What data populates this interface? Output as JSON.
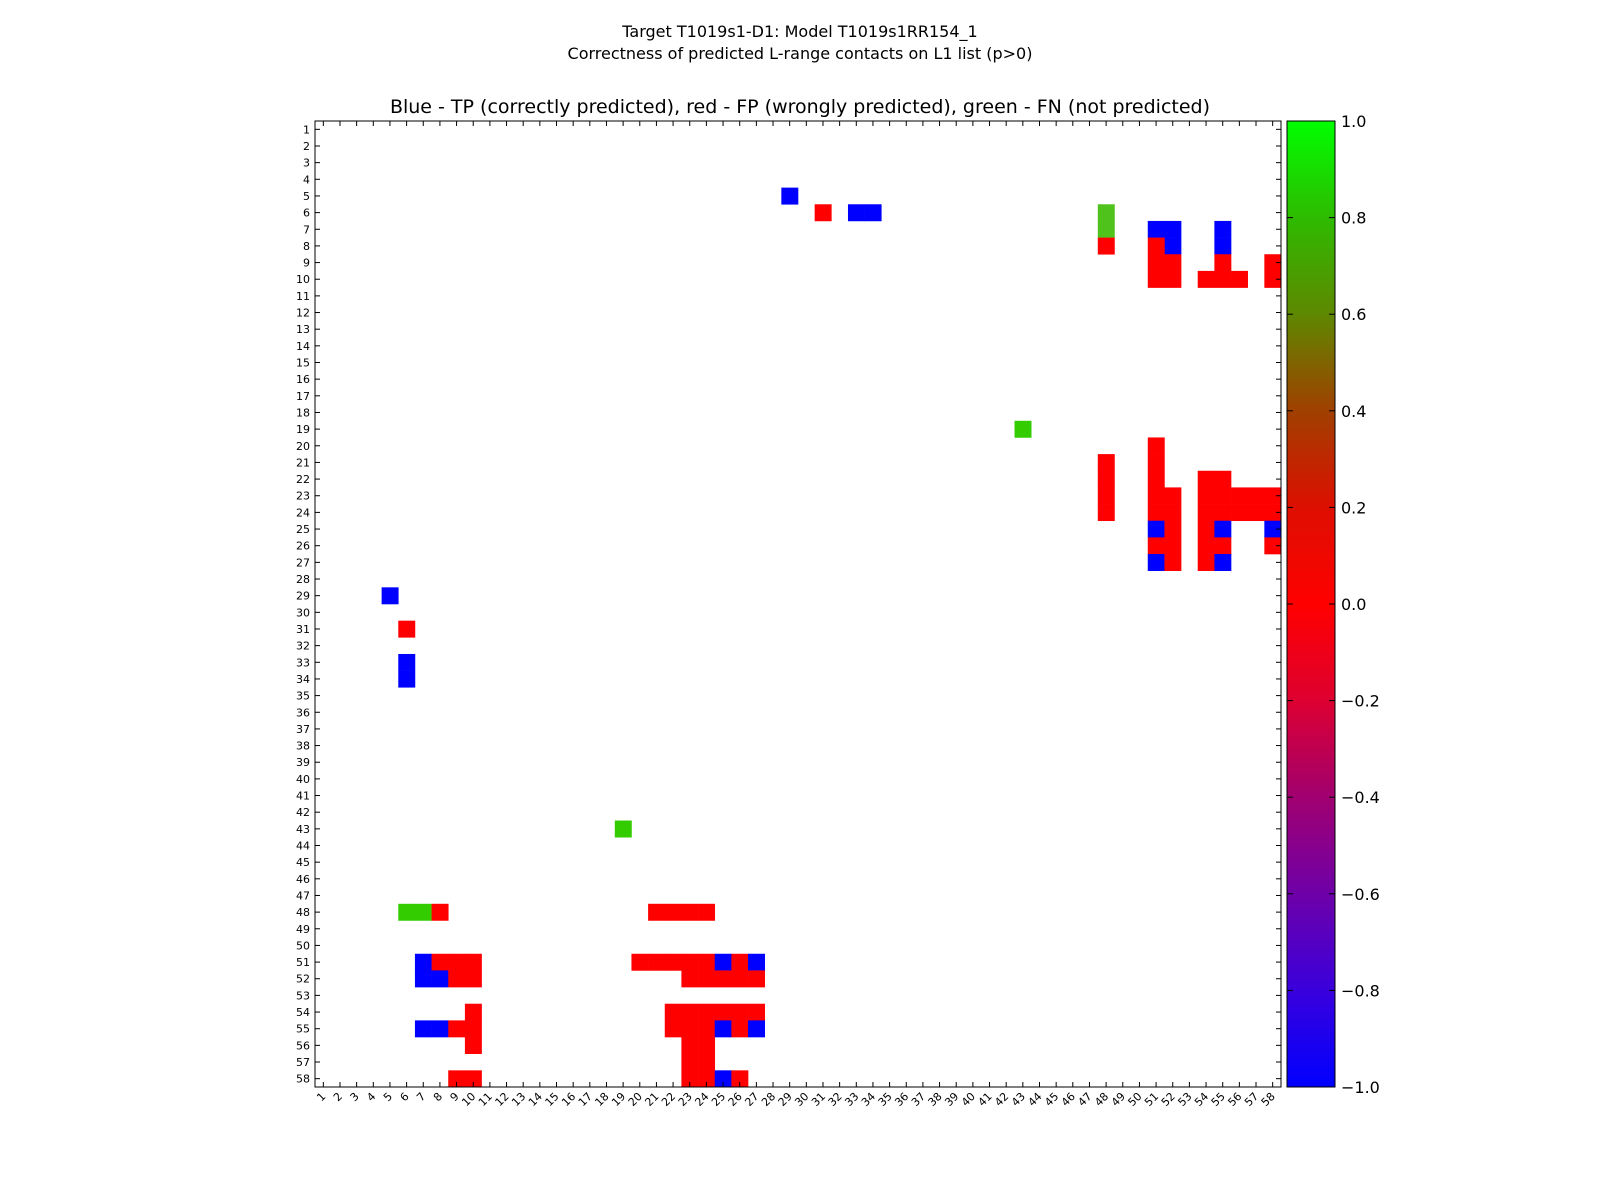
{
  "chart_data": {
    "type": "heatmap",
    "title_line1": "Target T1019s1-D1: Model T1019s1RR154_1",
    "title_line2": "Correctness of predicted L-range contacts on L1 list (p>0)",
    "subtitle": "Blue - TP (correctly predicted), red - FP (wrongly predicted), green - FN (not predicted)",
    "n": 58,
    "colors": {
      "TP": "#0000ff",
      "FP": "#ff0000",
      "FN": "#33cc00",
      "FN_light": "#4fc21c"
    },
    "colorbar": {
      "min": -1.0,
      "max": 1.0,
      "ticks": [
        "1.0",
        "0.8",
        "0.6",
        "0.4",
        "0.2",
        "0.0",
        "−0.2",
        "−0.4",
        "−0.6",
        "−0.8",
        "−1.0"
      ],
      "ramp": [
        "#00ff00",
        "#2ebb00",
        "#5e8800",
        "#a04000",
        "#dd0f00",
        "#ff0000",
        "#dd0030",
        "#a10070",
        "#6e00a8",
        "#3a00dc",
        "#0000ff"
      ]
    },
    "cells": [
      {
        "row": 5,
        "col": 29,
        "type": "TP"
      },
      {
        "row": 6,
        "col": 31,
        "type": "FP"
      },
      {
        "row": 6,
        "col": 33,
        "type": "TP"
      },
      {
        "row": 6,
        "col": 34,
        "type": "TP"
      },
      {
        "row": 6,
        "col": 48,
        "type": "FN_light"
      },
      {
        "row": 7,
        "col": 48,
        "type": "FN_light"
      },
      {
        "row": 8,
        "col": 48,
        "type": "FP"
      },
      {
        "row": 7,
        "col": 51,
        "type": "TP"
      },
      {
        "row": 7,
        "col": 52,
        "type": "TP"
      },
      {
        "row": 8,
        "col": 52,
        "type": "TP"
      },
      {
        "row": 7,
        "col": 55,
        "type": "TP"
      },
      {
        "row": 8,
        "col": 55,
        "type": "TP"
      },
      {
        "row": 8,
        "col": 51,
        "type": "FP"
      },
      {
        "row": 9,
        "col": 51,
        "type": "FP"
      },
      {
        "row": 9,
        "col": 52,
        "type": "FP"
      },
      {
        "row": 10,
        "col": 51,
        "type": "FP"
      },
      {
        "row": 10,
        "col": 52,
        "type": "FP"
      },
      {
        "row": 9,
        "col": 55,
        "type": "FP"
      },
      {
        "row": 10,
        "col": 54,
        "type": "FP"
      },
      {
        "row": 10,
        "col": 55,
        "type": "FP"
      },
      {
        "row": 10,
        "col": 56,
        "type": "FP"
      },
      {
        "row": 9,
        "col": 58,
        "type": "FP"
      },
      {
        "row": 10,
        "col": 58,
        "type": "FP"
      },
      {
        "row": 19,
        "col": 43,
        "type": "FN"
      },
      {
        "row": 21,
        "col": 48,
        "type": "FP"
      },
      {
        "row": 22,
        "col": 48,
        "type": "FP"
      },
      {
        "row": 23,
        "col": 48,
        "type": "FP"
      },
      {
        "row": 24,
        "col": 48,
        "type": "FP"
      },
      {
        "row": 20,
        "col": 51,
        "type": "FP"
      },
      {
        "row": 21,
        "col": 51,
        "type": "FP"
      },
      {
        "row": 22,
        "col": 51,
        "type": "FP"
      },
      {
        "row": 23,
        "col": 51,
        "type": "FP"
      },
      {
        "row": 24,
        "col": 51,
        "type": "FP"
      },
      {
        "row": 25,
        "col": 51,
        "type": "TP"
      },
      {
        "row": 26,
        "col": 51,
        "type": "FP"
      },
      {
        "row": 27,
        "col": 51,
        "type": "TP"
      },
      {
        "row": 23,
        "col": 52,
        "type": "FP"
      },
      {
        "row": 24,
        "col": 52,
        "type": "FP"
      },
      {
        "row": 25,
        "col": 52,
        "type": "FP"
      },
      {
        "row": 26,
        "col": 52,
        "type": "FP"
      },
      {
        "row": 27,
        "col": 52,
        "type": "FP"
      },
      {
        "row": 22,
        "col": 54,
        "type": "FP"
      },
      {
        "row": 23,
        "col": 54,
        "type": "FP"
      },
      {
        "row": 24,
        "col": 54,
        "type": "FP"
      },
      {
        "row": 25,
        "col": 54,
        "type": "FP"
      },
      {
        "row": 26,
        "col": 54,
        "type": "FP"
      },
      {
        "row": 27,
        "col": 54,
        "type": "FP"
      },
      {
        "row": 22,
        "col": 55,
        "type": "FP"
      },
      {
        "row": 23,
        "col": 55,
        "type": "FP"
      },
      {
        "row": 24,
        "col": 55,
        "type": "FP"
      },
      {
        "row": 25,
        "col": 55,
        "type": "TP"
      },
      {
        "row": 26,
        "col": 55,
        "type": "FP"
      },
      {
        "row": 27,
        "col": 55,
        "type": "TP"
      },
      {
        "row": 23,
        "col": 56,
        "type": "FP"
      },
      {
        "row": 24,
        "col": 56,
        "type": "FP"
      },
      {
        "row": 23,
        "col": 57,
        "type": "FP"
      },
      {
        "row": 24,
        "col": 57,
        "type": "FP"
      },
      {
        "row": 23,
        "col": 58,
        "type": "FP"
      },
      {
        "row": 24,
        "col": 58,
        "type": "FP"
      },
      {
        "row": 25,
        "col": 58,
        "type": "TP"
      },
      {
        "row": 26,
        "col": 58,
        "type": "FP"
      },
      {
        "row": 29,
        "col": 5,
        "type": "TP"
      },
      {
        "row": 31,
        "col": 6,
        "type": "FP"
      },
      {
        "row": 33,
        "col": 6,
        "type": "TP"
      },
      {
        "row": 34,
        "col": 6,
        "type": "TP"
      },
      {
        "row": 43,
        "col": 19,
        "type": "FN"
      },
      {
        "row": 48,
        "col": 6,
        "type": "FN"
      },
      {
        "row": 48,
        "col": 7,
        "type": "FN"
      },
      {
        "row": 48,
        "col": 8,
        "type": "FP"
      },
      {
        "row": 48,
        "col": 21,
        "type": "FP"
      },
      {
        "row": 48,
        "col": 22,
        "type": "FP"
      },
      {
        "row": 48,
        "col": 23,
        "type": "FP"
      },
      {
        "row": 48,
        "col": 24,
        "type": "FP"
      },
      {
        "row": 51,
        "col": 7,
        "type": "TP"
      },
      {
        "row": 51,
        "col": 8,
        "type": "FP"
      },
      {
        "row": 51,
        "col": 9,
        "type": "FP"
      },
      {
        "row": 51,
        "col": 10,
        "type": "FP"
      },
      {
        "row": 52,
        "col": 7,
        "type": "TP"
      },
      {
        "row": 52,
        "col": 8,
        "type": "TP"
      },
      {
        "row": 52,
        "col": 9,
        "type": "FP"
      },
      {
        "row": 52,
        "col": 10,
        "type": "FP"
      },
      {
        "row": 54,
        "col": 10,
        "type": "FP"
      },
      {
        "row": 55,
        "col": 7,
        "type": "TP"
      },
      {
        "row": 55,
        "col": 8,
        "type": "TP"
      },
      {
        "row": 55,
        "col": 9,
        "type": "FP"
      },
      {
        "row": 55,
        "col": 10,
        "type": "FP"
      },
      {
        "row": 56,
        "col": 10,
        "type": "FP"
      },
      {
        "row": 58,
        "col": 9,
        "type": "FP"
      },
      {
        "row": 58,
        "col": 10,
        "type": "FP"
      },
      {
        "row": 51,
        "col": 20,
        "type": "FP"
      },
      {
        "row": 51,
        "col": 21,
        "type": "FP"
      },
      {
        "row": 51,
        "col": 22,
        "type": "FP"
      },
      {
        "row": 51,
        "col": 23,
        "type": "FP"
      },
      {
        "row": 51,
        "col": 24,
        "type": "FP"
      },
      {
        "row": 51,
        "col": 25,
        "type": "TP"
      },
      {
        "row": 51,
        "col": 26,
        "type": "FP"
      },
      {
        "row": 51,
        "col": 27,
        "type": "TP"
      },
      {
        "row": 52,
        "col": 23,
        "type": "FP"
      },
      {
        "row": 52,
        "col": 24,
        "type": "FP"
      },
      {
        "row": 52,
        "col": 25,
        "type": "FP"
      },
      {
        "row": 52,
        "col": 26,
        "type": "FP"
      },
      {
        "row": 52,
        "col": 27,
        "type": "FP"
      },
      {
        "row": 54,
        "col": 22,
        "type": "FP"
      },
      {
        "row": 54,
        "col": 23,
        "type": "FP"
      },
      {
        "row": 54,
        "col": 24,
        "type": "FP"
      },
      {
        "row": 54,
        "col": 25,
        "type": "FP"
      },
      {
        "row": 54,
        "col": 26,
        "type": "FP"
      },
      {
        "row": 54,
        "col": 27,
        "type": "FP"
      },
      {
        "row": 55,
        "col": 22,
        "type": "FP"
      },
      {
        "row": 55,
        "col": 23,
        "type": "FP"
      },
      {
        "row": 55,
        "col": 24,
        "type": "FP"
      },
      {
        "row": 55,
        "col": 25,
        "type": "TP"
      },
      {
        "row": 55,
        "col": 26,
        "type": "FP"
      },
      {
        "row": 55,
        "col": 27,
        "type": "TP"
      },
      {
        "row": 56,
        "col": 23,
        "type": "FP"
      },
      {
        "row": 56,
        "col": 24,
        "type": "FP"
      },
      {
        "row": 57,
        "col": 23,
        "type": "FP"
      },
      {
        "row": 57,
        "col": 24,
        "type": "FP"
      },
      {
        "row": 58,
        "col": 23,
        "type": "FP"
      },
      {
        "row": 58,
        "col": 24,
        "type": "FP"
      },
      {
        "row": 58,
        "col": 25,
        "type": "TP"
      },
      {
        "row": 58,
        "col": 26,
        "type": "FP"
      }
    ]
  }
}
